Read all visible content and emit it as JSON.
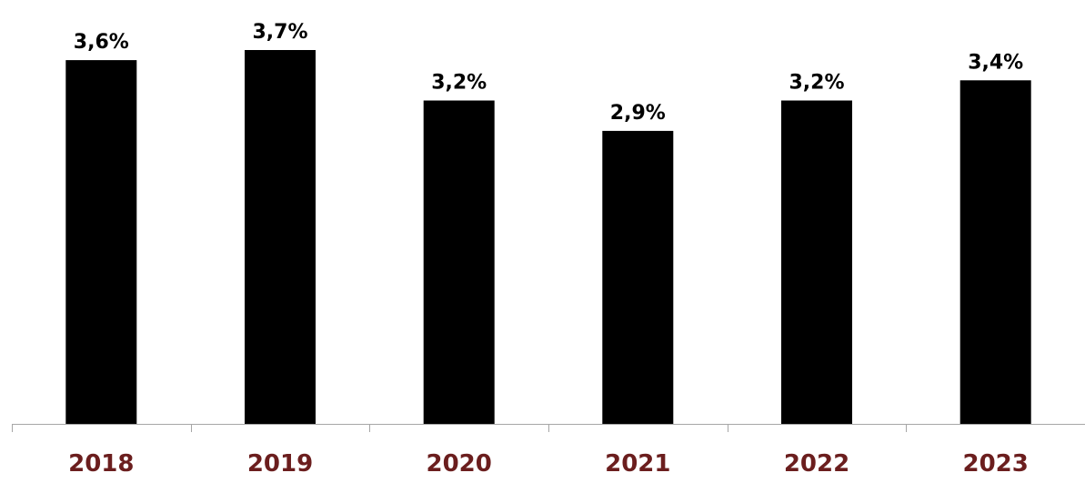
{
  "chart_data": {
    "type": "bar",
    "categories": [
      "2018",
      "2019",
      "2020",
      "2021",
      "2022",
      "2023"
    ],
    "values": [
      3.6,
      3.7,
      3.2,
      2.9,
      3.2,
      3.4
    ],
    "value_labels": [
      "3,6%",
      "3,7%",
      "3,2%",
      "2,9%",
      "3,2%",
      "3,4%"
    ],
    "title": "",
    "xlabel": "",
    "ylabel": "",
    "ylim": [
      0,
      3.7
    ],
    "grid": false,
    "legend": "none"
  },
  "colors": {
    "bar": "#000000",
    "category_label": "#6b1e1e",
    "axis": "#a6a6a6"
  }
}
